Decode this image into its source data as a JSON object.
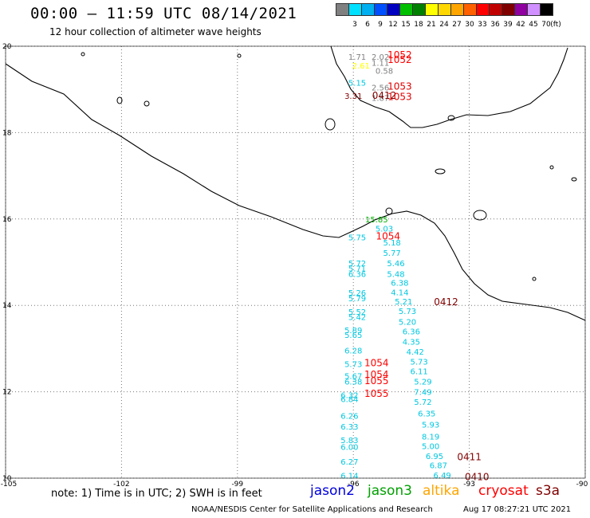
{
  "header": {
    "title": "00:00 – 11:59 UTC 08/14/2021",
    "subtitle": "12 hour collection of altimeter wave heights"
  },
  "colorbar": {
    "unit": "(ft)",
    "entries": [
      {
        "label": "",
        "color": "#808080"
      },
      {
        "label": "3",
        "color": "#00e0ff"
      },
      {
        "label": "6",
        "color": "#00b0f0"
      },
      {
        "label": "9",
        "color": "#0050ff"
      },
      {
        "label": "12",
        "color": "#0000c0"
      },
      {
        "label": "15",
        "color": "#00c000"
      },
      {
        "label": "18",
        "color": "#008000"
      },
      {
        "label": "21",
        "color": "#ffff00"
      },
      {
        "label": "24",
        "color": "#ffd700"
      },
      {
        "label": "27",
        "color": "#ffa500"
      },
      {
        "label": "30",
        "color": "#ff6000"
      },
      {
        "label": "33",
        "color": "#ff0000"
      },
      {
        "label": "36",
        "color": "#c00000"
      },
      {
        "label": "39",
        "color": "#800000"
      },
      {
        "label": "42",
        "color": "#9000a0"
      },
      {
        "label": "45",
        "color": "#d090ff"
      },
      {
        "label": "70",
        "color": "#000000"
      }
    ]
  },
  "axes": {
    "lon_labels": [
      "-105",
      "-102",
      "-99",
      "-96",
      "-93",
      "-90"
    ],
    "lat_labels": [
      "20",
      "18",
      "16",
      "14",
      "12",
      "10"
    ],
    "lon_range": [
      -105,
      -90
    ],
    "lat_range": [
      10,
      20
    ]
  },
  "observations": [
    {
      "lon": -95.3,
      "lat": 19.76,
      "text": "2.02",
      "color": "#808080"
    },
    {
      "lon": -95.9,
      "lat": 19.76,
      "text": "1.71",
      "color": "#808080"
    },
    {
      "lon": -95.3,
      "lat": 19.62,
      "text": "1.11",
      "color": "#808080"
    },
    {
      "lon": -95.8,
      "lat": 19.56,
      "text": "2.61",
      "color": "#ffff00"
    },
    {
      "lon": -95.2,
      "lat": 19.44,
      "text": "0.58",
      "color": "#808080"
    },
    {
      "lon": -95.9,
      "lat": 19.16,
      "text": "5.15",
      "color": "#00c8e0"
    },
    {
      "lon": -95.3,
      "lat": 19.05,
      "text": "2.56",
      "color": "#808080"
    },
    {
      "lon": -96.0,
      "lat": 18.86,
      "text": "3.31",
      "color": "#800000"
    },
    {
      "lon": -95.3,
      "lat": 18.81,
      "text": "1.87",
      "color": "#808080"
    },
    {
      "lon": -95.4,
      "lat": 16.0,
      "text": "15.85",
      "color": "#00b000"
    },
    {
      "lon": -95.2,
      "lat": 15.78,
      "text": "5.03",
      "color": "#00c8e0"
    },
    {
      "lon": -95.9,
      "lat": 15.58,
      "text": "5.75",
      "color": "#00c8e0"
    },
    {
      "lon": -95.0,
      "lat": 15.46,
      "text": "5.18",
      "color": "#00c8e0"
    },
    {
      "lon": -95.0,
      "lat": 15.22,
      "text": "5.77",
      "color": "#00c8e0"
    },
    {
      "lon": -95.9,
      "lat": 14.98,
      "text": "5.72",
      "color": "#00c8e0"
    },
    {
      "lon": -94.9,
      "lat": 14.98,
      "text": "5.46",
      "color": "#00c8e0"
    },
    {
      "lon": -95.9,
      "lat": 14.86,
      "text": "5.71",
      "color": "#00c8e0"
    },
    {
      "lon": -95.9,
      "lat": 14.73,
      "text": "6.36",
      "color": "#00c8e0"
    },
    {
      "lon": -94.9,
      "lat": 14.73,
      "text": "5.48",
      "color": "#00c8e0"
    },
    {
      "lon": -94.8,
      "lat": 14.53,
      "text": "6.38",
      "color": "#00c8e0"
    },
    {
      "lon": -95.9,
      "lat": 14.3,
      "text": "5.26",
      "color": "#00c8e0"
    },
    {
      "lon": -94.8,
      "lat": 14.31,
      "text": "4.14",
      "color": "#00c8e0"
    },
    {
      "lon": -95.9,
      "lat": 14.17,
      "text": "5.79",
      "color": "#00c8e0"
    },
    {
      "lon": -94.7,
      "lat": 14.1,
      "text": "5.21",
      "color": "#00c8e0"
    },
    {
      "lon": -95.9,
      "lat": 13.86,
      "text": "5.52",
      "color": "#00c8e0"
    },
    {
      "lon": -94.6,
      "lat": 13.87,
      "text": "5.73",
      "color": "#00c8e0"
    },
    {
      "lon": -95.9,
      "lat": 13.74,
      "text": "5.42",
      "color": "#00c8e0"
    },
    {
      "lon": -94.6,
      "lat": 13.63,
      "text": "5.20",
      "color": "#00c8e0"
    },
    {
      "lon": -96.0,
      "lat": 13.43,
      "text": "5.89",
      "color": "#00c8e0"
    },
    {
      "lon": -96.0,
      "lat": 13.32,
      "text": "5.65",
      "color": "#00c8e0"
    },
    {
      "lon": -94.5,
      "lat": 13.4,
      "text": "6.36",
      "color": "#00c8e0"
    },
    {
      "lon": -94.5,
      "lat": 13.16,
      "text": "4.35",
      "color": "#00c8e0"
    },
    {
      "lon": -96.0,
      "lat": 12.96,
      "text": "6.28",
      "color": "#00c8e0"
    },
    {
      "lon": -94.4,
      "lat": 12.93,
      "text": "4.42",
      "color": "#00c8e0"
    },
    {
      "lon": -94.3,
      "lat": 12.7,
      "text": "5.73",
      "color": "#00c8e0"
    },
    {
      "lon": -96.0,
      "lat": 12.65,
      "text": "5.73",
      "color": "#00c8e0"
    },
    {
      "lon": -94.3,
      "lat": 12.48,
      "text": "6.11",
      "color": "#00c8e0"
    },
    {
      "lon": -96.0,
      "lat": 12.37,
      "text": "5.67",
      "color": "#00c8e0"
    },
    {
      "lon": -96.0,
      "lat": 12.24,
      "text": "6.38",
      "color": "#00c8e0"
    },
    {
      "lon": -94.2,
      "lat": 12.24,
      "text": "5.29",
      "color": "#00c8e0"
    },
    {
      "lon": -94.2,
      "lat": 12.0,
      "text": "7.49",
      "color": "#00c8e0"
    },
    {
      "lon": -96.1,
      "lat": 11.93,
      "text": "6.32",
      "color": "#00c8e0"
    },
    {
      "lon": -96.1,
      "lat": 11.84,
      "text": "6.84",
      "color": "#00c8e0"
    },
    {
      "lon": -94.2,
      "lat": 11.77,
      "text": "5.72",
      "color": "#00c8e0"
    },
    {
      "lon": -94.1,
      "lat": 11.5,
      "text": "6.35",
      "color": "#00c8e0"
    },
    {
      "lon": -96.1,
      "lat": 11.45,
      "text": "6.26",
      "color": "#00c8e0"
    },
    {
      "lon": -94.0,
      "lat": 11.25,
      "text": "5.93",
      "color": "#00c8e0"
    },
    {
      "lon": -96.1,
      "lat": 11.2,
      "text": "6.33",
      "color": "#00c8e0"
    },
    {
      "lon": -94.0,
      "lat": 10.97,
      "text": "8.19",
      "color": "#00c8e0"
    },
    {
      "lon": -96.1,
      "lat": 10.89,
      "text": "5.83",
      "color": "#00c8e0"
    },
    {
      "lon": -94.0,
      "lat": 10.75,
      "text": "5.00",
      "color": "#00c8e0"
    },
    {
      "lon": -96.1,
      "lat": 10.73,
      "text": "6.00",
      "color": "#00c8e0"
    },
    {
      "lon": -93.9,
      "lat": 10.52,
      "text": "6.95",
      "color": "#00c8e0"
    },
    {
      "lon": -96.1,
      "lat": 10.39,
      "text": "6.27",
      "color": "#00c8e0"
    },
    {
      "lon": -93.8,
      "lat": 10.3,
      "text": "6.87",
      "color": "#00c8e0"
    },
    {
      "lon": -93.7,
      "lat": 10.07,
      "text": "6.49",
      "color": "#00c8e0"
    },
    {
      "lon": -96.1,
      "lat": 10.06,
      "text": "6.14",
      "color": "#00c8e0"
    }
  ],
  "passes": [
    {
      "lon": -94.8,
      "lat": 19.8,
      "text": "1052",
      "color": "#ff0000"
    },
    {
      "lon": -94.8,
      "lat": 19.69,
      "text": "1052",
      "color": "#ff0000"
    },
    {
      "lon": -94.8,
      "lat": 19.07,
      "text": "1053",
      "color": "#e00000"
    },
    {
      "lon": -95.2,
      "lat": 18.86,
      "text": "0412",
      "color": "#800000"
    },
    {
      "lon": -94.8,
      "lat": 18.83,
      "text": "1053",
      "color": "#e00000"
    },
    {
      "lon": -95.1,
      "lat": 15.6,
      "text": "1054",
      "color": "#ff0000"
    },
    {
      "lon": -93.6,
      "lat": 14.08,
      "text": "0412",
      "color": "#800000"
    },
    {
      "lon": -95.4,
      "lat": 12.67,
      "text": "1054",
      "color": "#ff0000"
    },
    {
      "lon": -95.4,
      "lat": 12.4,
      "text": "1054",
      "color": "#ff0000"
    },
    {
      "lon": -95.4,
      "lat": 12.25,
      "text": "1055",
      "color": "#ff0000"
    },
    {
      "lon": -95.4,
      "lat": 11.96,
      "text": "1055",
      "color": "#ff0000"
    },
    {
      "lon": -93.0,
      "lat": 10.49,
      "text": "0411",
      "color": "#800000"
    },
    {
      "lon": -92.8,
      "lat": 10.03,
      "text": "0410",
      "color": "#800000"
    }
  ],
  "footer": {
    "note": "note: 1) Time is in UTC; 2) SWH is in feet",
    "satellites": [
      {
        "label": "jason2",
        "color": "#0000e0"
      },
      {
        "label": "jason3",
        "color": "#00a000"
      },
      {
        "label": "altika",
        "color": "#ffa500"
      },
      {
        "label": "cryosat",
        "color": "#ff0000"
      },
      {
        "label": "s3a",
        "color": "#800000"
      }
    ],
    "credit": "NOAA/NESDIS Center for Satellite Applications and Research",
    "generated": "Aug 17 08:27:21 UTC 2021"
  }
}
